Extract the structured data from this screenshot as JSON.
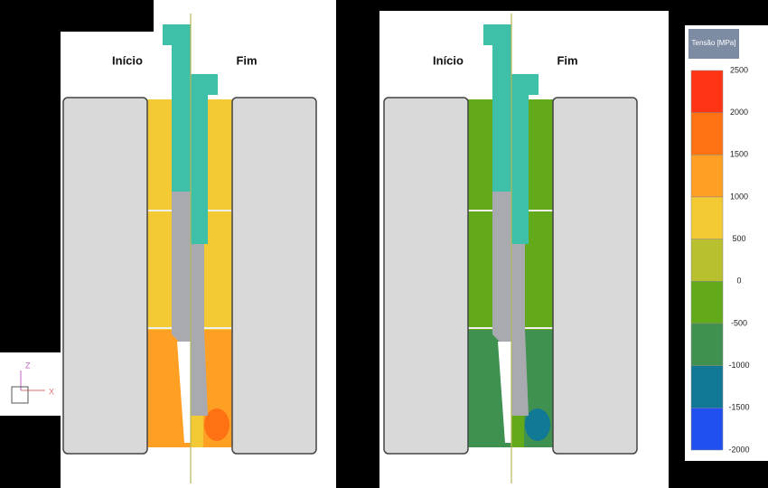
{
  "panels": [
    {
      "left_label": "Início",
      "right_label": "Fim"
    },
    {
      "left_label": "Início",
      "right_label": "Fim"
    }
  ],
  "triad": {
    "z": "Z",
    "x": "X"
  },
  "legend": {
    "title": "Tensão [MPa]",
    "ticks": [
      2500,
      2000,
      1500,
      1000,
      500,
      0,
      -500,
      -1000,
      -1500,
      -2000
    ],
    "colors": [
      "#ff3414",
      "#ff7214",
      "#ffa024",
      "#f4ca34",
      "#b8c030",
      "#62aa1a",
      "#3f9150",
      "#117896",
      "#2050f0"
    ]
  }
}
